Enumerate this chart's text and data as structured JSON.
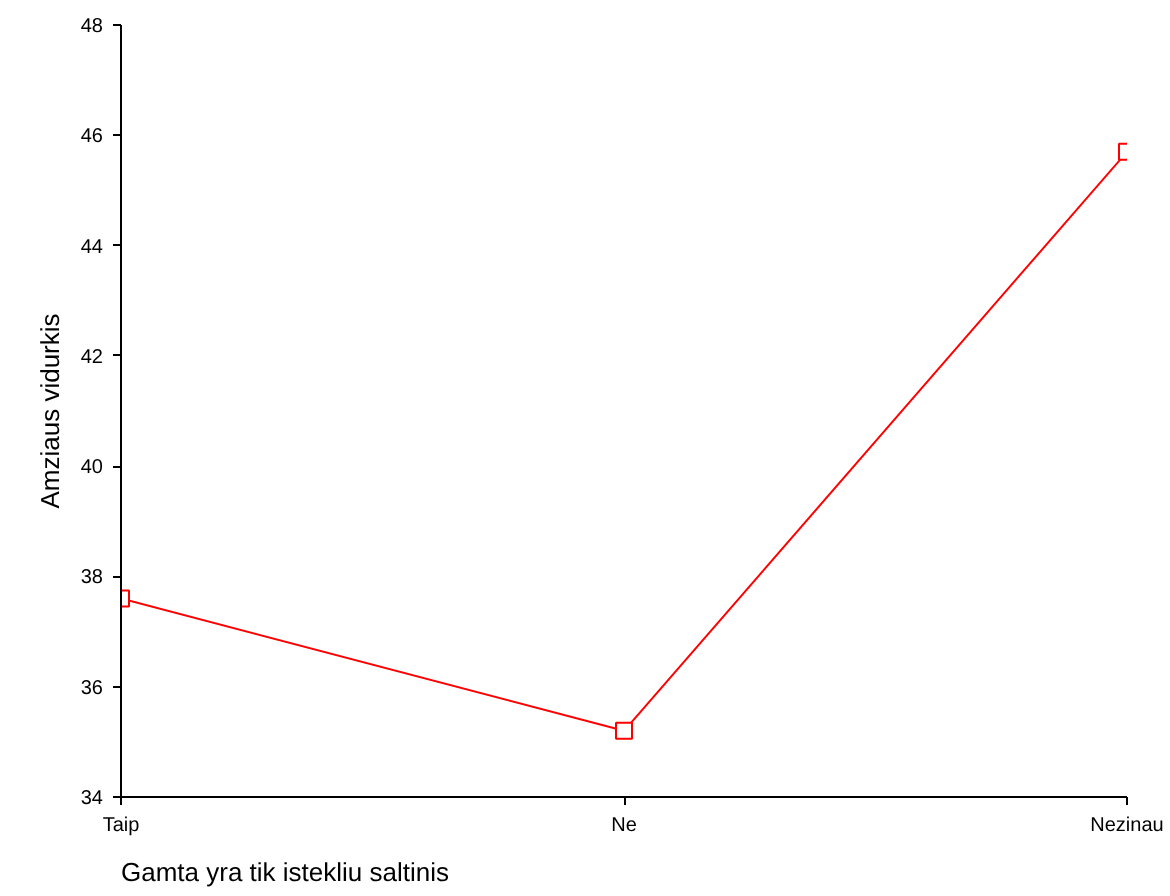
{
  "chart_data": {
    "type": "line",
    "xlabel": "Gamta yra tik istekliu saltinis",
    "ylabel": "Amziaus vidurkis",
    "categories": [
      "Taip",
      "Ne",
      "Nezinau"
    ],
    "series": [
      {
        "color": "#ff0000",
        "values": [
          37.6,
          35.2,
          45.7
        ]
      }
    ],
    "ylim": [
      34,
      48
    ],
    "yticks": [
      34,
      36,
      38,
      40,
      42,
      44,
      46,
      48
    ],
    "marker": "square",
    "line_style": "solid",
    "grid": false
  }
}
